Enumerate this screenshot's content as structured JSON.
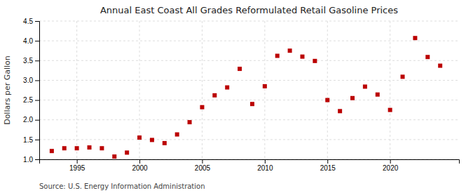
{
  "chart_data": {
    "type": "scatter",
    "title": "Annual East Coast All Grades Reformulated Retail Gasoline Prices",
    "ylabel": "Dollars per Gallon",
    "source": "Source: U.S. Energy Information Administration",
    "x": [
      1993,
      1994,
      1995,
      1996,
      1997,
      1998,
      1999,
      2000,
      2001,
      2002,
      2003,
      2004,
      2005,
      2006,
      2007,
      2008,
      2009,
      2010,
      2011,
      2012,
      2013,
      2014,
      2015,
      2016,
      2017,
      2018,
      2019,
      2020,
      2021,
      2022,
      2023,
      2024
    ],
    "values": [
      1.21,
      1.28,
      1.28,
      1.3,
      1.28,
      1.07,
      1.17,
      1.55,
      1.49,
      1.41,
      1.63,
      1.94,
      2.32,
      2.62,
      2.82,
      3.29,
      2.4,
      2.85,
      3.62,
      3.75,
      3.6,
      3.49,
      2.5,
      2.22,
      2.55,
      2.84,
      2.64,
      2.25,
      3.09,
      4.07,
      3.59,
      3.37
    ],
    "color": "#bb0000",
    "marker": "square",
    "xlim": [
      1992.0,
      2025.5
    ],
    "xticks": [
      1995,
      2000,
      2005,
      2010,
      2015,
      2020
    ],
    "ylim": [
      1.0,
      4.5
    ],
    "yticks": [
      {
        "value": 1.0,
        "label": "1.0"
      },
      1.5,
      {
        "value": 2.0,
        "label": "2.0"
      },
      2.5,
      {
        "value": 3.0,
        "label": "3.0"
      },
      3.5,
      {
        "value": 4.0,
        "label": "4.0"
      },
      4.5
    ],
    "grid": true
  }
}
